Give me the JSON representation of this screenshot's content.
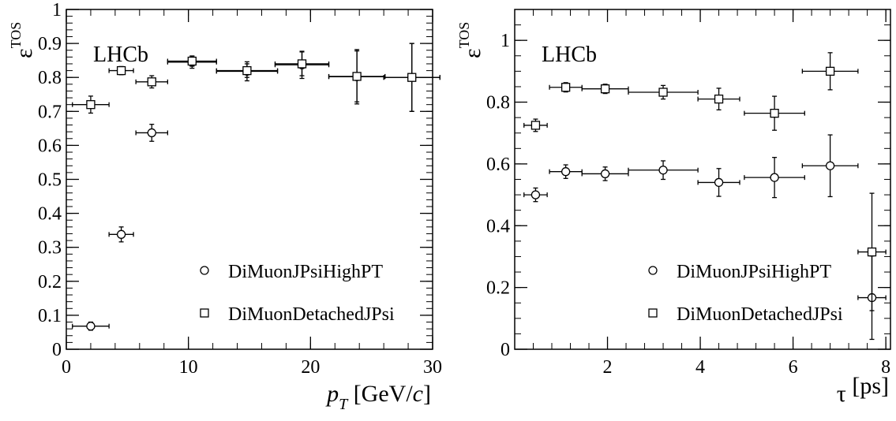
{
  "chart_data": [
    {
      "type": "scatter",
      "experiment_label": "LHCb",
      "ylabel_symbol": "ε",
      "ylabel_superscript": "TOS",
      "xlabel_pre": "p",
      "xlabel_sub": "T",
      "xlabel_mid": " [GeV/",
      "xlabel_unit_italic": "c",
      "xlabel_post": "]",
      "xlim": [
        0,
        30
      ],
      "ylim": [
        0,
        1
      ],
      "xticks": [
        0,
        10,
        20,
        30
      ],
      "xtick_labels": [
        "0",
        "10",
        "20",
        "30"
      ],
      "yticks": [
        0,
        0.1,
        0.2,
        0.3,
        0.4,
        0.5,
        0.6,
        0.7,
        0.8,
        0.9,
        1
      ],
      "ytick_labels": [
        "0",
        "0.1",
        "0.2",
        "0.3",
        "0.4",
        "0.5",
        "0.6",
        "0.7",
        "0.8",
        "0.9",
        "1"
      ],
      "grid": false,
      "legend_position": "bottom-right",
      "series": [
        {
          "name": "DiMuonJPsiHighPT",
          "marker": "circle",
          "points": [
            {
              "x": 2.0,
              "y": 0.068,
              "xerr": 1.5,
              "yerr": 0.012
            },
            {
              "x": 4.5,
              "y": 0.338,
              "xerr": 1.0,
              "yerr": 0.022
            },
            {
              "x": 7.0,
              "y": 0.637,
              "xerr": 1.3,
              "yerr": 0.025
            },
            {
              "x": 10.3,
              "y": 0.845,
              "xerr": 2.0,
              "yerr": 0.018
            },
            {
              "x": 14.8,
              "y": 0.818,
              "xerr": 2.5,
              "yerr": 0.028
            },
            {
              "x": 19.3,
              "y": 0.837,
              "xerr": 2.2,
              "yerr": 0.04
            },
            {
              "x": 23.8,
              "y": 0.802,
              "xerr": 2.3,
              "yerr": 0.08
            },
            {
              "x": 28.3,
              "y": 0.8,
              "xerr": 2.3,
              "yerr": 0.1
            }
          ]
        },
        {
          "name": "DiMuonDetachedJPsi",
          "marker": "square",
          "points": [
            {
              "x": 2.0,
              "y": 0.72,
              "xerr": 1.5,
              "yerr": 0.025
            },
            {
              "x": 4.5,
              "y": 0.82,
              "xerr": 1.0,
              "yerr": 0.012
            },
            {
              "x": 7.0,
              "y": 0.787,
              "xerr": 1.3,
              "yerr": 0.018
            },
            {
              "x": 10.3,
              "y": 0.848,
              "xerr": 2.0,
              "yerr": 0.015
            },
            {
              "x": 14.8,
              "y": 0.82,
              "xerr": 2.5,
              "yerr": 0.02
            },
            {
              "x": 19.3,
              "y": 0.84,
              "xerr": 2.2,
              "yerr": 0.035
            },
            {
              "x": 23.8,
              "y": 0.803,
              "xerr": 2.3,
              "yerr": 0.075
            },
            {
              "x": 28.3,
              "y": 0.8,
              "xerr": 2.3,
              "yerr": 0.1
            }
          ]
        }
      ]
    },
    {
      "type": "scatter",
      "experiment_label": "LHCb",
      "ylabel_symbol": "ε",
      "ylabel_superscript": "TOS",
      "xlabel_pre": "τ",
      "xlabel_sub": "",
      "xlabel_mid": " [ps]",
      "xlabel_unit_italic": "",
      "xlabel_post": "",
      "xlim": [
        0,
        8.1
      ],
      "ylim": [
        0,
        1.1
      ],
      "xticks": [
        2,
        4,
        6,
        8
      ],
      "xtick_labels": [
        "2",
        "4",
        "6",
        "8"
      ],
      "yticks": [
        0,
        0.2,
        0.4,
        0.6,
        0.8,
        1
      ],
      "ytick_labels": [
        "0",
        "0.2",
        "0.4",
        "0.6",
        "0.8",
        "1"
      ],
      "grid": false,
      "legend_position": "bottom-right",
      "series": [
        {
          "name": "DiMuonJPsiHighPT",
          "marker": "circle",
          "points": [
            {
              "x": 0.45,
              "y": 0.5,
              "xerr": 0.25,
              "yerr": 0.022
            },
            {
              "x": 1.1,
              "y": 0.575,
              "xerr": 0.35,
              "yerr": 0.022
            },
            {
              "x": 1.95,
              "y": 0.568,
              "xerr": 0.5,
              "yerr": 0.022
            },
            {
              "x": 3.2,
              "y": 0.58,
              "xerr": 0.75,
              "yerr": 0.03
            },
            {
              "x": 4.4,
              "y": 0.54,
              "xerr": 0.45,
              "yerr": 0.045
            },
            {
              "x": 5.6,
              "y": 0.556,
              "xerr": 0.65,
              "yerr": 0.065
            },
            {
              "x": 6.8,
              "y": 0.594,
              "xerr": 0.6,
              "yerr": 0.1
            },
            {
              "x": 7.7,
              "y": 0.167,
              "xerr": 0.3,
              "yerr": 0.135
            }
          ]
        },
        {
          "name": "DiMuonDetachedJPsi",
          "marker": "square",
          "points": [
            {
              "x": 0.45,
              "y": 0.725,
              "xerr": 0.25,
              "yerr": 0.02
            },
            {
              "x": 1.1,
              "y": 0.848,
              "xerr": 0.35,
              "yerr": 0.015
            },
            {
              "x": 1.95,
              "y": 0.843,
              "xerr": 0.5,
              "yerr": 0.015
            },
            {
              "x": 3.2,
              "y": 0.832,
              "xerr": 0.75,
              "yerr": 0.022
            },
            {
              "x": 4.4,
              "y": 0.81,
              "xerr": 0.45,
              "yerr": 0.035
            },
            {
              "x": 5.6,
              "y": 0.764,
              "xerr": 0.65,
              "yerr": 0.055
            },
            {
              "x": 6.8,
              "y": 0.9,
              "xerr": 0.6,
              "yerr": 0.06
            },
            {
              "x": 7.7,
              "y": 0.315,
              "xerr": 0.3,
              "yerr": 0.19
            }
          ]
        }
      ]
    }
  ]
}
